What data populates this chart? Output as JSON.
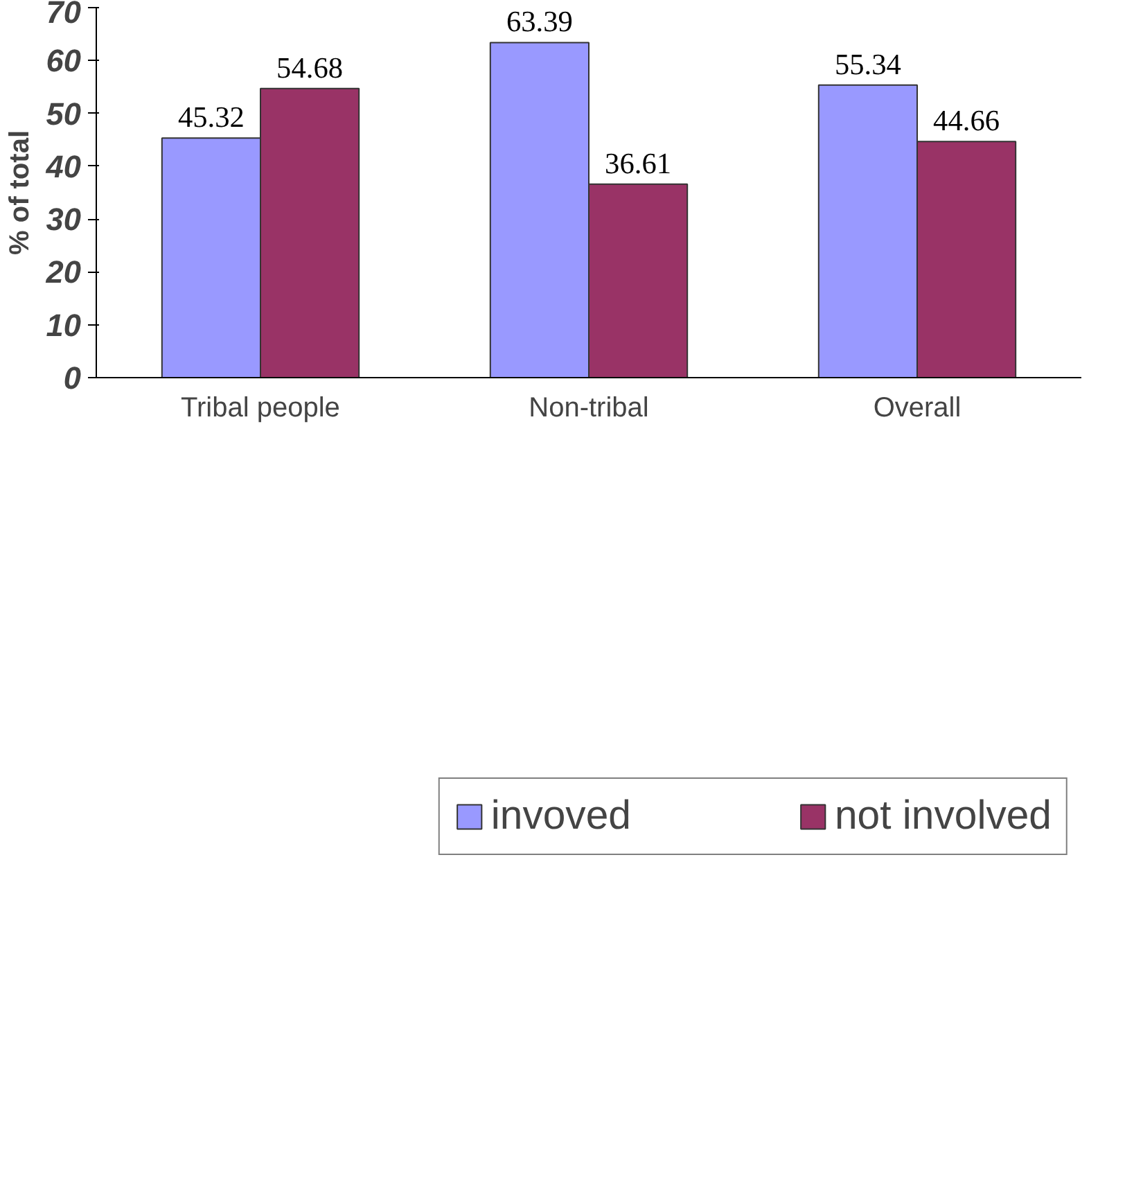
{
  "chart_data": {
    "type": "bar",
    "ylabel": "% of total",
    "categories": [
      "Tribal people",
      "Non-tribal",
      "Overall"
    ],
    "series": [
      {
        "name": "invoved",
        "color": "#9999ff",
        "values": [
          45.32,
          63.39,
          55.34
        ]
      },
      {
        "name": "not involved",
        "color": "#993366",
        "values": [
          54.68,
          36.61,
          44.66
        ]
      }
    ],
    "ylim": [
      0,
      70
    ],
    "yticks": [
      0,
      10,
      20,
      30,
      40,
      50,
      60,
      70
    ],
    "data_labels": true,
    "grid": false,
    "legend": "bottom"
  }
}
